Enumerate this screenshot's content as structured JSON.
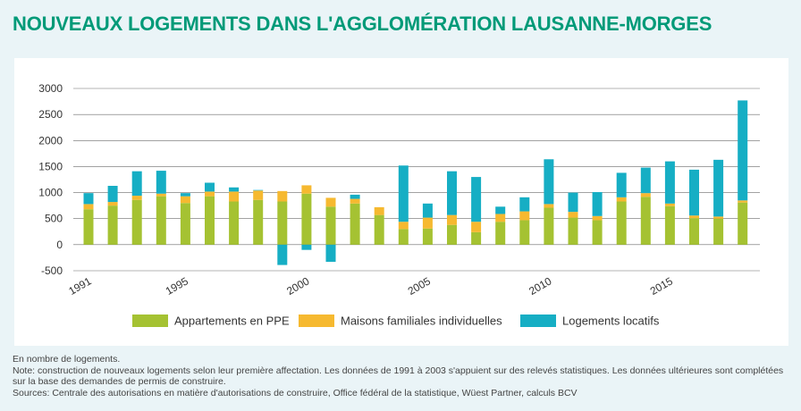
{
  "title": "NOUVEAUX LOGEMENTS DANS L'AGGLOMÉRATION LAUSANNE-MORGES",
  "notes": [
    "En nombre de logements.",
    "Note: construction de nouveaux logements selon leur première affectation. Les données de 1991 à 2003 s'appuient sur des relevés statistiques. Les données ultérieures sont complétées sur la base des demandes de permis de construire.",
    "Sources: Centrale des autorisations en matière d'autorisations de construire, Office fédéral de la statistique, Wüest Partner, calculs BCV"
  ],
  "colors": {
    "title": "#009a78",
    "background": "#eaf4f7",
    "ppe": "#a5c232",
    "maisons": "#f6b930",
    "locatifs": "#16aec4"
  },
  "chart_data": {
    "type": "bar",
    "stacked": true,
    "title": "NOUVEAUX LOGEMENTS DANS L'AGGLOMÉRATION LAUSANNE-MORGES",
    "xlabel": "",
    "ylabel": "",
    "ylim": [
      -500,
      3000
    ],
    "yticks": [
      -500,
      0,
      500,
      1000,
      1500,
      2000,
      2500,
      3000
    ],
    "xtick_labels": [
      "1991",
      "1995",
      "2000",
      "2005",
      "2010",
      "2015"
    ],
    "grid": true,
    "legend": "bottom",
    "categories": [
      "1991",
      "1992",
      "1993",
      "1994",
      "1995",
      "1996",
      "1997",
      "1998",
      "1999",
      "2000",
      "2001",
      "2002",
      "2003",
      "2004",
      "2005",
      "2006",
      "2007",
      "2008",
      "2009",
      "2010",
      "2011",
      "2012",
      "2013",
      "2014",
      "2015",
      "2016",
      "2017",
      "2018"
    ],
    "series": [
      {
        "name": "Appartements en PPE",
        "color": "#a5c232",
        "values": [
          680,
          750,
          860,
          930,
          800,
          930,
          830,
          860,
          830,
          980,
          730,
          790,
          570,
          300,
          310,
          380,
          240,
          440,
          470,
          710,
          520,
          470,
          830,
          920,
          740,
          510,
          500,
          810
        ]
      },
      {
        "name": "Maisons familiales individuelles",
        "color": "#f6b930",
        "values": [
          100,
          70,
          80,
          50,
          130,
          90,
          190,
          180,
          200,
          160,
          170,
          90,
          150,
          140,
          210,
          190,
          200,
          150,
          170,
          70,
          110,
          80,
          80,
          70,
          50,
          50,
          40,
          40
        ]
      },
      {
        "name": "Logements locatifs",
        "color": "#16aec4",
        "values": [
          210,
          310,
          470,
          440,
          60,
          170,
          80,
          10,
          -390,
          -100,
          -330,
          80,
          0,
          1080,
          270,
          840,
          860,
          140,
          270,
          860,
          370,
          460,
          470,
          490,
          810,
          880,
          1090,
          1920
        ]
      }
    ]
  }
}
